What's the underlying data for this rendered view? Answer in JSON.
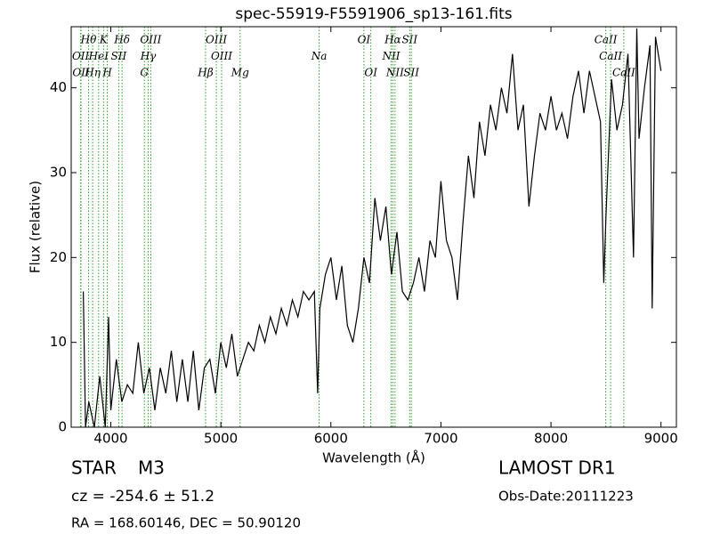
{
  "chart_data": {
    "type": "line",
    "title": "spec-55919-F5591906_sp13-161.fits",
    "x_label": "Wavelength (Å)",
    "y_label": "Flux (relative)",
    "xlim": [
      3640,
      9140
    ],
    "ylim": [
      0,
      47.2
    ],
    "xticks": [
      4000,
      5000,
      6000,
      7000,
      8000,
      9000
    ],
    "yticks": [
      0,
      10,
      20,
      30,
      40
    ],
    "color": "#000000",
    "line_color": "#2ca02c",
    "x": [
      3750,
      3770,
      3800,
      3850,
      3900,
      3950,
      3980,
      4000,
      4050,
      4100,
      4150,
      4200,
      4250,
      4300,
      4350,
      4400,
      4450,
      4500,
      4550,
      4600,
      4650,
      4700,
      4750,
      4800,
      4850,
      4900,
      4950,
      5000,
      5050,
      5100,
      5150,
      5200,
      5250,
      5300,
      5350,
      5400,
      5450,
      5500,
      5550,
      5600,
      5650,
      5700,
      5750,
      5800,
      5850,
      5880,
      5900,
      5950,
      6000,
      6050,
      6100,
      6150,
      6200,
      6250,
      6300,
      6350,
      6400,
      6450,
      6500,
      6550,
      6600,
      6650,
      6700,
      6750,
      6800,
      6850,
      6900,
      6950,
      7000,
      7050,
      7100,
      7150,
      7200,
      7250,
      7300,
      7350,
      7400,
      7450,
      7500,
      7550,
      7600,
      7650,
      7700,
      7750,
      7800,
      7850,
      7900,
      7950,
      8000,
      8050,
      8100,
      8150,
      8200,
      8250,
      8300,
      8350,
      8400,
      8450,
      8480,
      8500,
      8550,
      8600,
      8650,
      8700,
      8750,
      8780,
      8800,
      8850,
      8900,
      8920,
      8950,
      9000
    ],
    "values": [
      16,
      0,
      3,
      0,
      6,
      0,
      13,
      2,
      8,
      3,
      5,
      4,
      10,
      4,
      7,
      2,
      7,
      4,
      9,
      3,
      8,
      3,
      9,
      2,
      7,
      8,
      4,
      10,
      7,
      11,
      6,
      8,
      10,
      9,
      12,
      10,
      13,
      11,
      14,
      12,
      15,
      13,
      16,
      15,
      16,
      4,
      14,
      18,
      20,
      15,
      19,
      12,
      10,
      14,
      20,
      17,
      27,
      22,
      26,
      18,
      23,
      16,
      15,
      17,
      20,
      16,
      22,
      20,
      29,
      22,
      20,
      15,
      24,
      32,
      27,
      36,
      32,
      38,
      35,
      40,
      37,
      44,
      35,
      38,
      26,
      32,
      37,
      35,
      39,
      35,
      37,
      34,
      39,
      42,
      37,
      42,
      39,
      36,
      17,
      25,
      41,
      35,
      38,
      44,
      20,
      47,
      34,
      40,
      45,
      14,
      46,
      42
    ],
    "lines": [
      {
        "wavelength": 3726,
        "label": "OII",
        "row": 1
      },
      {
        "wavelength": 3729,
        "label": "OII",
        "row": 2
      },
      {
        "wavelength": 3798,
        "label": "Hθ",
        "row": 0
      },
      {
        "wavelength": 3835,
        "label": "Hη",
        "row": 2
      },
      {
        "wavelength": 3889,
        "label": "HeI",
        "row": 1
      },
      {
        "wavelength": 3934,
        "label": "K",
        "row": 0
      },
      {
        "wavelength": 3968,
        "label": "H",
        "row": 2
      },
      {
        "wavelength": 4072,
        "label": "SII",
        "row": 1
      },
      {
        "wavelength": 4102,
        "label": "Hδ",
        "row": 0
      },
      {
        "wavelength": 4305,
        "label": "G",
        "row": 2
      },
      {
        "wavelength": 4340,
        "label": "Hγ",
        "row": 1
      },
      {
        "wavelength": 4363,
        "label": "OIII",
        "row": 0
      },
      {
        "wavelength": 4861,
        "label": "Hβ",
        "row": 2
      },
      {
        "wavelength": 4959,
        "label": "OIII",
        "row": 0
      },
      {
        "wavelength": 5007,
        "label": "OIII",
        "row": 1
      },
      {
        "wavelength": 5175,
        "label": "Mg",
        "row": 2
      },
      {
        "wavelength": 5893,
        "label": "Na",
        "row": 1
      },
      {
        "wavelength": 6300,
        "label": "OI",
        "row": 0
      },
      {
        "wavelength": 6363,
        "label": "OI",
        "row": 2
      },
      {
        "wavelength": 6548,
        "label": "NII",
        "row": 1
      },
      {
        "wavelength": 6563,
        "label": "Hα",
        "row": 0
      },
      {
        "wavelength": 6583,
        "label": "NII",
        "row": 2
      },
      {
        "wavelength": 6716,
        "label": "SII",
        "row": 0
      },
      {
        "wavelength": 6731,
        "label": "SII",
        "row": 2
      },
      {
        "wavelength": 8498,
        "label": "CaII",
        "row": 0
      },
      {
        "wavelength": 8542,
        "label": "CaII",
        "row": 1
      },
      {
        "wavelength": 8662,
        "label": "CaII",
        "row": 2
      }
    ],
    "object_class": "STAR",
    "subclass": "M3",
    "survey": "LAMOST DR1",
    "redshift": "cz = -254.6 ± 51.2",
    "obs_date": "Obs-Date:20111223",
    "coords": "RA = 168.60146, DEC = 50.90120"
  }
}
